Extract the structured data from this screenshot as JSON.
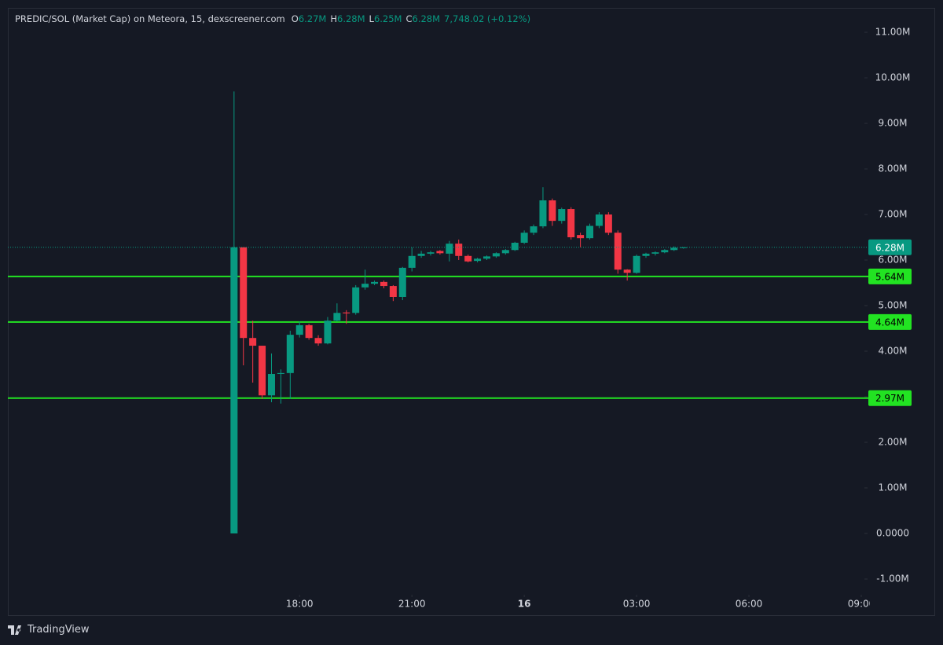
{
  "header": {
    "title": "PREDIC/SOL (Market Cap) on Meteora, 15, dexscreener.com",
    "ohlc": [
      {
        "key": "O",
        "value": "6.27M"
      },
      {
        "key": "H",
        "value": "6.28M"
      },
      {
        "key": "L",
        "value": "6.25M"
      },
      {
        "key": "C",
        "value": "6.28M"
      }
    ],
    "change": "7,748.02 (+0.12%)"
  },
  "footer": {
    "brand": "TradingView"
  },
  "chart_data": {
    "type": "candlestick",
    "x": [
      "16:15",
      "16:30",
      "16:45",
      "17:00",
      "17:15",
      "17:30",
      "17:45",
      "18:00",
      "18:15",
      "18:30",
      "18:45",
      "19:00",
      "19:15",
      "19:30",
      "19:45",
      "20:00",
      "20:15",
      "20:30",
      "20:45",
      "21:00",
      "21:15",
      "21:30",
      "21:45",
      "22:00",
      "22:15",
      "22:30",
      "22:45",
      "23:00",
      "23:15",
      "23:30",
      "23:45",
      "00:00",
      "00:15",
      "00:30",
      "00:45",
      "01:00",
      "01:15",
      "01:30",
      "01:45",
      "02:00",
      "02:15",
      "02:30",
      "02:45",
      "03:00",
      "03:15",
      "03:30",
      "03:45",
      "04:00",
      "04:15"
    ],
    "open": [
      0,
      6280000,
      4290000,
      4120000,
      3030000,
      3500000,
      3520000,
      4360000,
      4570000,
      4290000,
      4170000,
      4670000,
      4850000,
      4840000,
      5400000,
      5480000,
      5520000,
      5430000,
      5190000,
      5830000,
      6090000,
      6140000,
      6200000,
      6140000,
      6360000,
      6090000,
      5980000,
      6030000,
      6080000,
      6150000,
      6220000,
      6380000,
      6600000,
      6740000,
      7310000,
      6860000,
      7120000,
      6550000,
      6480000,
      6750000,
      7000000,
      6600000,
      5790000,
      5720000,
      6090000,
      6140000,
      6170000,
      6220000,
      6270000
    ],
    "high": [
      9700000,
      6280000,
      4670000,
      4120000,
      3950000,
      3600000,
      4450000,
      4650000,
      4600000,
      4350000,
      4750000,
      5050000,
      4900000,
      5450000,
      5790000,
      5550000,
      5550000,
      5450000,
      5850000,
      6280000,
      6200000,
      6200000,
      6220000,
      6420000,
      6450000,
      6120000,
      6050000,
      6100000,
      6170000,
      6240000,
      6400000,
      6650000,
      6780000,
      7600000,
      7350000,
      7150000,
      7160000,
      6600000,
      6800000,
      7050000,
      7050000,
      6650000,
      5800000,
      6120000,
      6160000,
      6190000,
      6240000,
      6300000,
      6280000
    ],
    "low": [
      0,
      3690000,
      3310000,
      2950000,
      2880000,
      2850000,
      2950000,
      4300000,
      4250000,
      4120000,
      4150000,
      4650000,
      4600000,
      4800000,
      5350000,
      5450000,
      5380000,
      5100000,
      5120000,
      5750000,
      6050000,
      6100000,
      6120000,
      5970000,
      6000000,
      5950000,
      5950000,
      6000000,
      6050000,
      6120000,
      6200000,
      6350000,
      6550000,
      6700000,
      6750000,
      6800000,
      6450000,
      6280000,
      6450000,
      6700000,
      6550000,
      5700000,
      5550000,
      5700000,
      6050000,
      6100000,
      6150000,
      6200000,
      6250000
    ],
    "close": [
      6280000,
      4290000,
      4120000,
      3030000,
      3500000,
      3520000,
      4360000,
      4570000,
      4290000,
      4170000,
      4670000,
      4840000,
      4830000,
      5400000,
      5480000,
      5520000,
      5430000,
      5190000,
      5830000,
      6090000,
      6140000,
      6170000,
      6150000,
      6360000,
      6090000,
      5970000,
      6030000,
      6080000,
      6150000,
      6220000,
      6380000,
      6600000,
      6740000,
      7310000,
      6860000,
      7120000,
      6500000,
      6480000,
      6750000,
      7000000,
      6600000,
      5790000,
      5720000,
      6090000,
      6140000,
      6170000,
      6220000,
      6270000,
      6280000
    ],
    "up_color": "#089981",
    "down_color": "#f23645",
    "xlim": [
      "10:00",
      "09:00"
    ],
    "xticks": [
      {
        "value": "18:00",
        "label": "18:00"
      },
      {
        "value": "21:00",
        "label": "21:00"
      },
      {
        "value": "00:00",
        "label": "16"
      },
      {
        "value": "03:00",
        "label": "03:00"
      },
      {
        "value": "06:00",
        "label": "06:00"
      },
      {
        "value": "09:00",
        "label": "09:00"
      }
    ],
    "ylim": [
      -1345000,
      11535000
    ],
    "yticks": [
      {
        "value": -1000000,
        "label": "-1.00M"
      },
      {
        "value": 0,
        "label": "0.0000"
      },
      {
        "value": 1000000,
        "label": "1.00M"
      },
      {
        "value": 2000000,
        "label": "2.00M"
      },
      {
        "value": 3000000,
        "label": "3.00M"
      },
      {
        "value": 4000000,
        "label": "4.00M"
      },
      {
        "value": 5000000,
        "label": "5.00M"
      },
      {
        "value": 6000000,
        "label": "6.00M"
      },
      {
        "value": 7000000,
        "label": "7.00M"
      },
      {
        "value": 8000000,
        "label": "8.00M"
      },
      {
        "value": 9000000,
        "label": "9.00M"
      },
      {
        "value": 10000000,
        "label": "10.00M"
      },
      {
        "value": 11000000,
        "label": "11.00M"
      }
    ],
    "hlines": [
      {
        "value": 5640000,
        "label": "5.64M"
      },
      {
        "value": 4640000,
        "label": "4.64M"
      },
      {
        "value": 2970000,
        "label": "2.97M"
      }
    ],
    "hline_color": "#22e322",
    "last_price": {
      "value": 6280000,
      "label": "6.28M"
    }
  }
}
